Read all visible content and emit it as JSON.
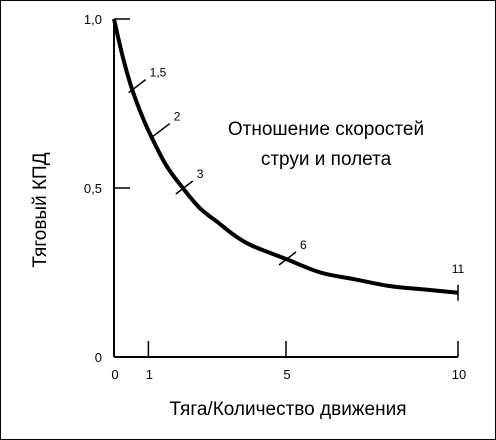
{
  "chart_data": {
    "type": "line",
    "title": "",
    "xlabel": "Тяга/Количество движения",
    "ylabel": "Тяговый КПД",
    "xlim": [
      0,
      10
    ],
    "ylim": [
      0,
      1.0
    ],
    "x_ticks": [
      {
        "value": 0,
        "label": "0"
      },
      {
        "value": 1,
        "label": "1"
      },
      {
        "value": 5,
        "label": "5"
      },
      {
        "value": 10,
        "label": "10"
      }
    ],
    "y_ticks": [
      {
        "value": 0,
        "label": "0"
      },
      {
        "value": 0.5,
        "label": "0,5"
      },
      {
        "value": 1.0,
        "label": "1,0"
      }
    ],
    "annotation_text": [
      "Отношение скоростей",
      "струи и полета"
    ],
    "series": [
      {
        "x": [
          0,
          0.25,
          0.5,
          0.75,
          1,
          1.5,
          2,
          2.5,
          3,
          3.5,
          4,
          5,
          6,
          7,
          8,
          9,
          10
        ],
        "y": [
          1.0,
          0.89,
          0.8,
          0.73,
          0.67,
          0.57,
          0.5,
          0.44,
          0.4,
          0.36,
          0.33,
          0.29,
          0.25,
          0.23,
          0.21,
          0.2,
          0.19
        ]
      }
    ],
    "annotations": [
      {
        "x": 0.63,
        "y": 0.8,
        "label": "1,5"
      },
      {
        "x": 1.33,
        "y": 0.67,
        "label": "2"
      },
      {
        "x": 2.0,
        "y": 0.5,
        "label": "3"
      },
      {
        "x": 5.0,
        "y": 0.29,
        "label": "6"
      },
      {
        "x": 10.0,
        "y": 0.19,
        "label": "11"
      }
    ]
  }
}
